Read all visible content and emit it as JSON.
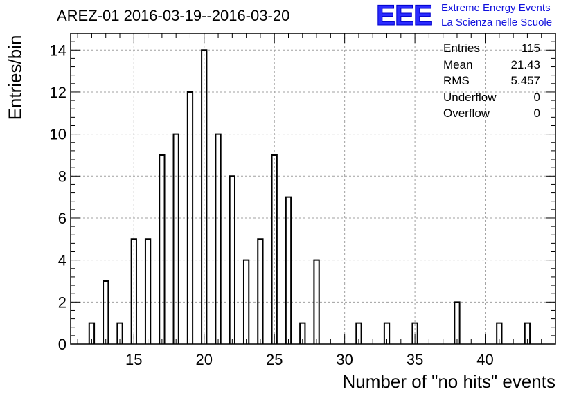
{
  "title": "AREZ-01 2016-03-19--2016-03-20",
  "logo": {
    "mark": "EEE",
    "line1": "Extreme Energy Events",
    "line2": "La Scienza nelle Scuole"
  },
  "stats": [
    {
      "label": "Entries",
      "value": "115"
    },
    {
      "label": "Mean",
      "value": "21.43"
    },
    {
      "label": "RMS",
      "value": "5.457"
    },
    {
      "label": "Underflow",
      "value": "0"
    },
    {
      "label": "Overflow",
      "value": "0"
    }
  ],
  "chart_data": {
    "type": "bar",
    "title": "AREZ-01 2016-03-19--2016-03-20",
    "xlabel": "Number of \"no hits\" events",
    "ylabel": "Entries/bin",
    "xlim": [
      10.5,
      45
    ],
    "ylim": [
      0,
      14.8
    ],
    "grid": true,
    "x_ticks": [
      15,
      20,
      25,
      30,
      35,
      40
    ],
    "y_ticks": [
      0,
      2,
      4,
      6,
      8,
      10,
      12,
      14
    ],
    "x": [
      12,
      13,
      14,
      15,
      16,
      17,
      18,
      19,
      20,
      21,
      22,
      23,
      24,
      25,
      26,
      27,
      28,
      31,
      33,
      35,
      38,
      41,
      43
    ],
    "values": [
      1,
      3,
      1,
      5,
      5,
      9,
      10,
      12,
      14,
      10,
      8,
      4,
      5,
      9,
      7,
      1,
      4,
      1,
      1,
      1,
      2,
      1,
      1
    ],
    "colors": {
      "bar": "#000000",
      "grid": "#a0a0a0",
      "axis": "#000000"
    }
  }
}
